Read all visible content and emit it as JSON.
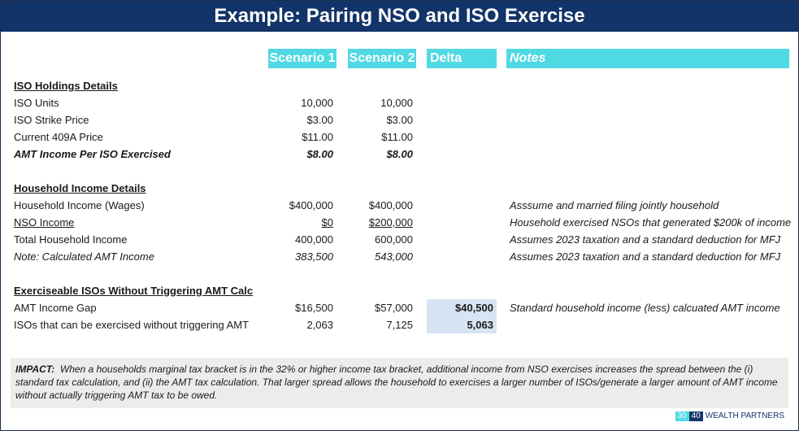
{
  "title": "Example: Pairing NSO and ISO Exercise",
  "headers": {
    "scenario1": "Scenario 1",
    "scenario2": "Scenario 2",
    "delta": "Delta",
    "notes": "Notes"
  },
  "sections": {
    "iso_holdings": "ISO Holdings Details",
    "household_income": "Household Income Details",
    "exerciseable": "Exerciseable ISOs Without Triggering AMT Calc"
  },
  "rows": {
    "iso_units": {
      "label": "ISO Units",
      "s1": "10,000",
      "s2": "10,000"
    },
    "iso_strike": {
      "label": "ISO Strike Price",
      "s1": "$3.00",
      "s2": "$3.00"
    },
    "current_409a": {
      "label": "Current 409A Price",
      "s1": "$11.00",
      "s2": "$11.00"
    },
    "amt_income_per_iso": {
      "label": "AMT Income Per ISO Exercised",
      "s1": "$8.00",
      "s2": "$8.00"
    },
    "household_wages": {
      "label": "Household Income (Wages)",
      "s1": "$400,000",
      "s2": "$400,000",
      "note": "Asssume and married filing jointly household"
    },
    "nso_income": {
      "label": "NSO Income",
      "s1": "$0",
      "s2": "$200,000",
      "note": "Household exercised NSOs that generated $200k of income"
    },
    "total_household": {
      "label": "Total Household Income",
      "s1": "400,000",
      "s2": "600,000",
      "note": "Assumes 2023 taxation and a standard deduction for MFJ"
    },
    "calc_amt_income": {
      "label": "Note: Calculated AMT Income",
      "s1": "383,500",
      "s2": "543,000",
      "note": "Assumes 2023 taxation and a standard deduction for MFJ"
    },
    "amt_income_gap": {
      "label": "AMT Income Gap",
      "s1": "$16,500",
      "s2": "$57,000",
      "delta": "$40,500",
      "note": "Standard household income (less) calcuated AMT income"
    },
    "isos_exercisable": {
      "label": "ISOs that can be exercised without triggering AMT",
      "s1": "2,063",
      "s2": "7,125",
      "delta": "5,063"
    }
  },
  "impact": {
    "label": "IMPACT:",
    "text": "When a households marginal tax bracket is in the 32% or higher income tax bracket, additional income from NSO exercises increases the spread between the (i) standard tax calculation, and (ii) the AMT tax calculation. That larger spread allows the household to exercises a larger number of ISOs/generate a larger amount of AMT income without actually triggering AMT tax to be owed."
  },
  "brand": {
    "part1": "30",
    "part2": "40",
    "name": "WEALTH PARTNERS"
  },
  "colors": {
    "title_bg": "#123468",
    "header_bg": "#4fd9e3",
    "delta_bg": "#d6e4f3",
    "impact_bg": "#ececec"
  }
}
